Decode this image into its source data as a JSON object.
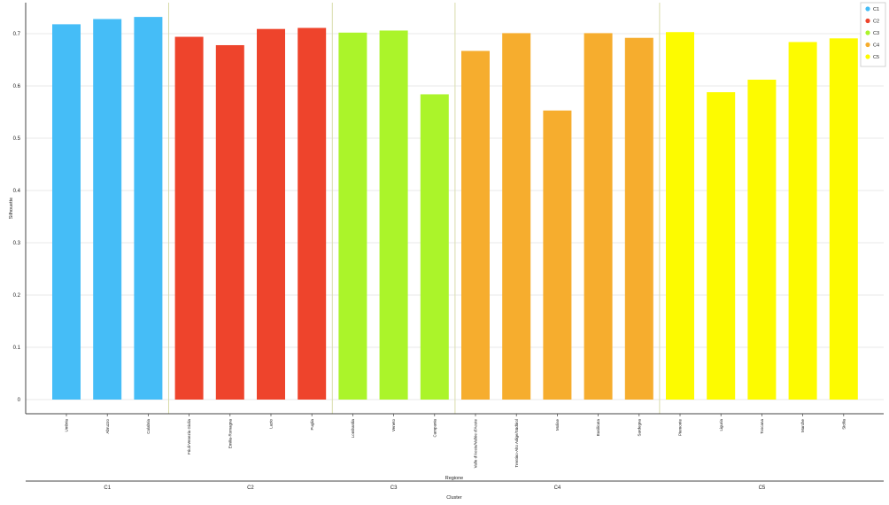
{
  "chart_data": {
    "type": "bar",
    "title": "",
    "xlabel": "Regione",
    "group_label": "Cluster",
    "ylabel": "Silhouette",
    "ylim": [
      0,
      0.76
    ],
    "yticks": [
      "0",
      "0.1",
      "0.2",
      "0.3",
      "0.4",
      "0.5",
      "0.6",
      "0.7"
    ],
    "grid": true,
    "legend_position": "top-right",
    "categories": [
      "Umbria",
      "Abruzzo",
      "Calabria",
      "Friuli-Venezia Giulia",
      "Emilia-Romagna",
      "Lazio",
      "Puglia",
      "Lombardia",
      "Veneto",
      "Campania",
      "Valle d'Aosta/Vallée d'Aoste",
      "Trentino-Alto Adige/Südtirol",
      "Molise",
      "Basilicata",
      "Sardegna",
      "Piemonte",
      "Liguria",
      "Toscana",
      "Marche",
      "Sicilia"
    ],
    "values": [
      0.718,
      0.728,
      0.732,
      0.694,
      0.678,
      0.709,
      0.711,
      0.702,
      0.706,
      0.584,
      0.667,
      0.701,
      0.553,
      0.701,
      0.692,
      0.703,
      0.588,
      0.612,
      0.684,
      0.691
    ],
    "clusters": [
      "C1",
      "C1",
      "C1",
      "C2",
      "C2",
      "C2",
      "C2",
      "C3",
      "C3",
      "C3",
      "C4",
      "C4",
      "C4",
      "C4",
      "C4",
      "C5",
      "C5",
      "C5",
      "C5",
      "C5"
    ],
    "series": [
      {
        "name": "C1",
        "color": "#45bdf7"
      },
      {
        "name": "C2",
        "color": "#ee442c"
      },
      {
        "name": "C3",
        "color": "#abf42a"
      },
      {
        "name": "C4",
        "color": "#f6ad2e"
      },
      {
        "name": "C5",
        "color": "#fdfb00"
      }
    ],
    "groups": [
      {
        "label": "C1",
        "start": 0,
        "count": 3
      },
      {
        "label": "C2",
        "start": 3,
        "count": 4
      },
      {
        "label": "C3",
        "start": 7,
        "count": 3
      },
      {
        "label": "C4",
        "start": 10,
        "count": 5
      },
      {
        "label": "C5",
        "start": 15,
        "count": 5
      }
    ]
  }
}
